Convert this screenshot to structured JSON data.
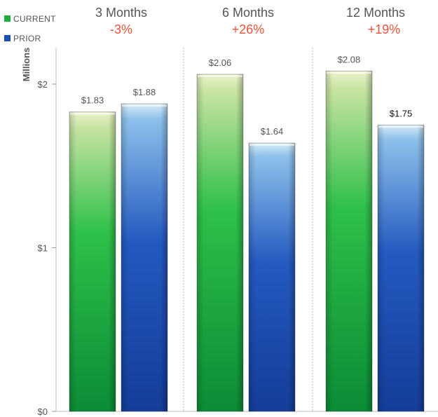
{
  "colors": {
    "current": "#1fae3e",
    "prior": "#1d4fb0",
    "change": "#e8533a"
  },
  "chart_data": {
    "type": "bar",
    "ylabel": "Millions",
    "ylim": [
      0,
      2.2
    ],
    "yticks": [
      {
        "value": 0,
        "label": "$0"
      },
      {
        "value": 1,
        "label": "$1"
      },
      {
        "value": 2,
        "label": "$2"
      }
    ],
    "legend": {
      "placement": "top-left",
      "entries": [
        {
          "key": "current",
          "label": "CURRENT"
        },
        {
          "key": "prior",
          "label": "PRIOR"
        }
      ]
    },
    "categories": [
      {
        "label": "3 Months",
        "change": "-3%"
      },
      {
        "label": "6 Months",
        "change": "+26%"
      },
      {
        "label": "12 Months",
        "change": "+19%"
      }
    ],
    "series": [
      {
        "key": "current",
        "name": "CURRENT",
        "values": [
          1.83,
          2.06,
          2.08
        ],
        "labels": [
          "$1.83",
          "$2.06",
          "$2.08"
        ]
      },
      {
        "key": "prior",
        "name": "PRIOR",
        "values": [
          1.88,
          1.64,
          1.75
        ],
        "labels": [
          "$1.88",
          "$1.64",
          "$1.75"
        ]
      }
    ]
  }
}
